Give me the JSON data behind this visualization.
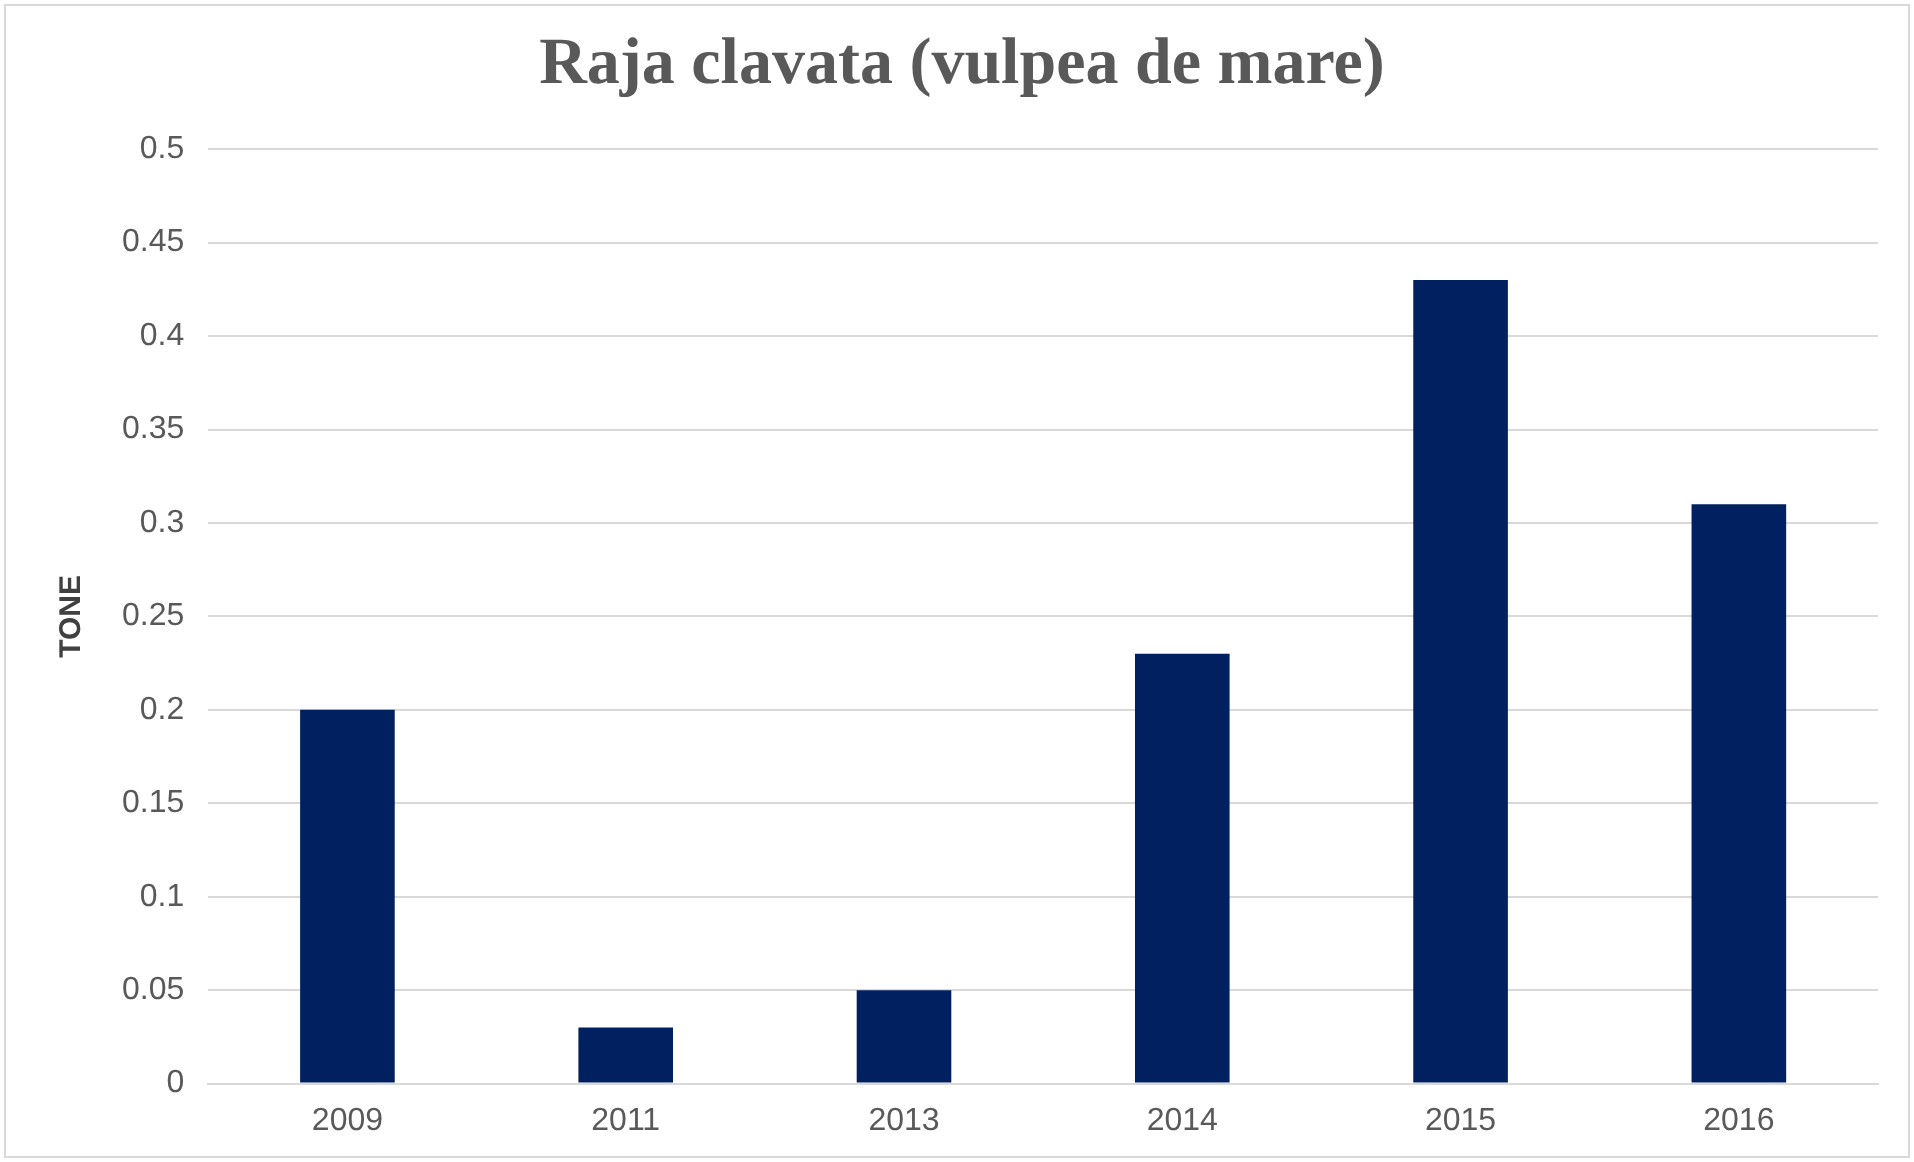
{
  "chart_data": {
    "type": "bar",
    "title": "Raja clavata (vulpea de mare)",
    "ylabel": "TONE",
    "categories": [
      "2009",
      "2011",
      "2013",
      "2014",
      "2015",
      "2016"
    ],
    "values": [
      0.2,
      0.03,
      0.05,
      0.23,
      0.43,
      0.31
    ],
    "color": "#002060",
    "ylim": [
      0,
      0.5
    ],
    "yticks": [
      0,
      0.05,
      0.1,
      0.15,
      0.2,
      0.25,
      0.3,
      0.35,
      0.4,
      0.45,
      0.5
    ],
    "grid": "y",
    "legend": false
  }
}
